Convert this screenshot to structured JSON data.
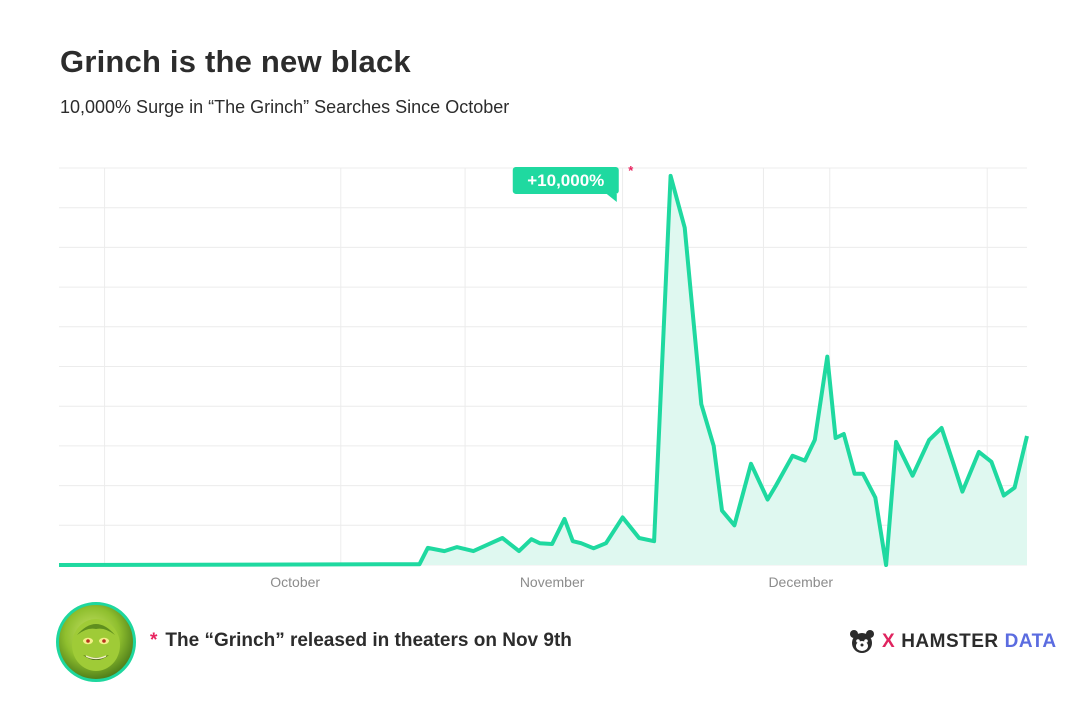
{
  "header": {
    "title": "Grinch is the new black",
    "subtitle": "10,000% Surge in “The Grinch” Searches Since October"
  },
  "footer": {
    "note_marker": "*",
    "note": "The “Grinch” released in theaters on Nov 9th",
    "brand_x": "X",
    "brand_hamster": "HAMSTER",
    "brand_data": "DATA",
    "avatar_icon": "grinch-face-icon"
  },
  "colors": {
    "line": "#1fd9a0",
    "fill": "#dff8f0",
    "accent_marker": "#e8245f",
    "grid": "#ececec",
    "brand_x": "#e0245f",
    "brand_data": "#5b6ce0"
  },
  "chart_data": {
    "type": "area",
    "title": "Grinch is the new black",
    "subtitle": "10,000% Surge in “The Grinch” Searches Since October",
    "xlabel": "",
    "ylabel": "",
    "x_range": [
      -28.5,
      88.3
    ],
    "ylim": [
      0,
      100
    ],
    "grid": true,
    "legend": "none",
    "x_ticks": [
      {
        "label": "October",
        "pos": 0
      },
      {
        "label": "November",
        "pos": 31
      },
      {
        "label": "December",
        "pos": 61
      }
    ],
    "annotation": {
      "label": "+10,000%",
      "marker": "*",
      "x": 42.3,
      "y": 98
    },
    "series": [
      {
        "x": [
          -28.5,
          15,
          16,
          18,
          19.5,
          21.5,
          23.5,
          25,
          27,
          28.5,
          29.5,
          31,
          32.5,
          33.5,
          34.5,
          36,
          37.5,
          39.5,
          41.5,
          43.3,
          45.3,
          47,
          49,
          50.5,
          51.5,
          53,
          55,
          57,
          58,
          60,
          61.5,
          62.7,
          64.2,
          65.2,
          66.2,
          67.5,
          68.5,
          70,
          71.3,
          72.5,
          74.5,
          76.5,
          78,
          79.5,
          80.5,
          82.5,
          84,
          85.5,
          86.8,
          88.3
        ],
        "y": [
          0,
          0.2,
          4.3,
          3.5,
          4.5,
          3.5,
          5.4,
          6.8,
          3.5,
          6.5,
          5.5,
          5.3,
          11.6,
          6,
          5.5,
          4.2,
          5.5,
          12,
          6.8,
          6,
          98,
          85,
          40.5,
          30,
          13.7,
          10,
          25.5,
          16.5,
          20,
          27.5,
          26.3,
          31.5,
          52.5,
          32,
          33,
          23,
          23,
          17,
          0,
          31,
          22.5,
          31.5,
          34.5,
          25,
          18.5,
          28.5,
          26,
          17.5,
          19.5,
          32.5
        ]
      }
    ]
  }
}
